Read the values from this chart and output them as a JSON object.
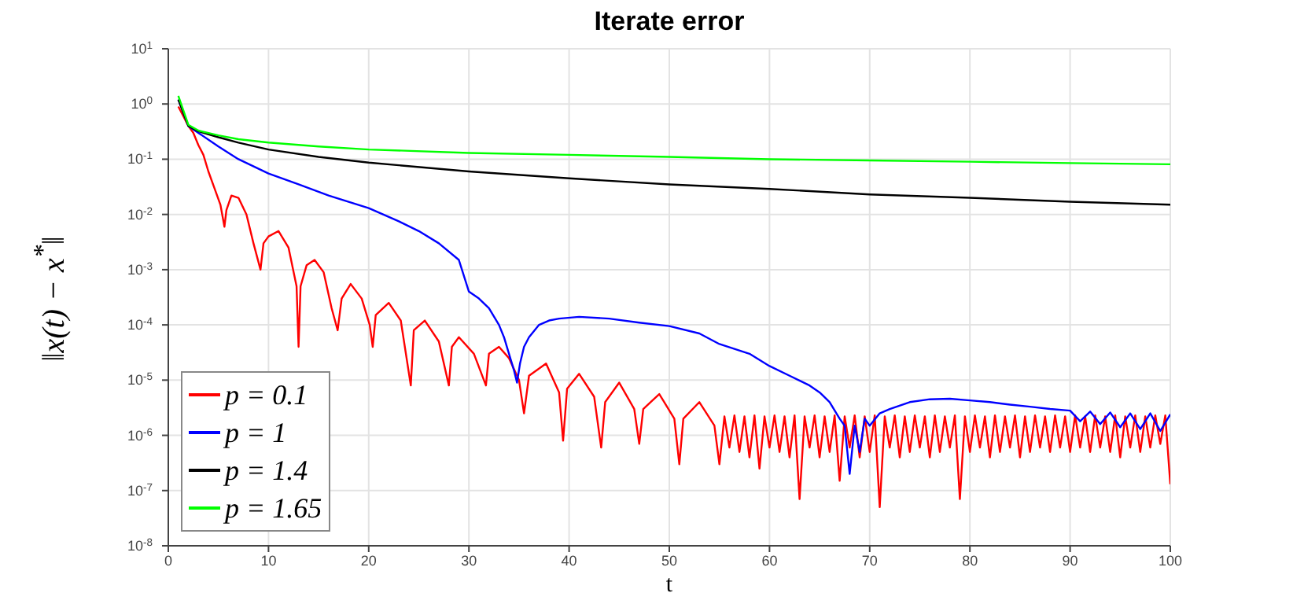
{
  "chart_data": {
    "type": "line",
    "title": "Iterate error",
    "xlabel": "t",
    "ylabel": "‖x(t) − x$^{*}$‖",
    "log": "y",
    "grid": true,
    "legend": "bottom left",
    "line_style": "solid",
    "marker": "none",
    "xlim": [
      0,
      100
    ],
    "xticks": [
      0,
      10,
      20,
      30,
      40,
      50,
      60,
      70,
      80,
      90,
      100
    ],
    "ylim": [
      1e-08,
      10
    ],
    "yticks": [
      {
        "value": 1e-08,
        "label": "10$^{-8}$"
      },
      {
        "value": 1e-07,
        "label": "10$^{-7}$"
      },
      {
        "value": 1e-06,
        "label": "10$^{-6}$"
      },
      {
        "value": 1e-05,
        "label": "10$^{-5}$"
      },
      {
        "value": 0.0001,
        "label": "10$^{-4}$"
      },
      {
        "value": 0.001,
        "label": "10$^{-3}$"
      },
      {
        "value": 0.01,
        "label": "10$^{-2}$"
      },
      {
        "value": 0.1,
        "label": "10$^{-1}$"
      },
      {
        "value": 1,
        "label": "10$^{0}$"
      },
      {
        "value": 10,
        "label": "10$^{1}$"
      }
    ],
    "series": [
      {
        "name": "p = 0.1",
        "color": "#ff0000",
        "x": [
          1,
          1.5,
          2,
          2.5,
          3,
          3.5,
          4,
          4.6,
          5.2,
          5.6,
          5.8,
          6.3,
          7,
          7.8,
          8.5,
          9.2,
          9.5,
          10,
          11,
          12,
          12.8,
          13,
          13.2,
          13.8,
          14.6,
          15.5,
          16.3,
          16.9,
          17.3,
          18.2,
          19.3,
          20.1,
          20.4,
          20.7,
          22,
          23.2,
          24.2,
          24.5,
          25.6,
          27,
          28,
          28.3,
          29,
          30.5,
          31.7,
          32,
          33,
          34,
          35,
          35.5,
          36,
          37.7,
          39,
          39.4,
          39.8,
          41,
          42.5,
          43.2,
          43.6,
          45,
          46.5,
          47,
          47.4,
          49,
          50.5,
          51,
          51.4,
          53,
          54.5,
          55,
          55.5,
          56,
          56.5,
          57,
          57.5,
          58,
          58.5,
          59,
          59.5,
          60,
          60.5,
          61,
          61.5,
          62,
          62.5,
          63,
          63.5,
          64,
          64.5,
          65,
          65.5,
          66,
          66.5,
          67,
          67.5,
          68,
          68.5,
          69,
          69.5,
          70,
          70.5,
          71,
          71.5,
          72,
          72.5,
          73,
          73.5,
          74,
          74.5,
          75,
          75.5,
          76,
          76.5,
          77,
          77.5,
          78,
          78.5,
          79,
          79.5,
          80,
          80.5,
          81,
          81.5,
          82,
          82.5,
          83,
          83.5,
          84,
          84.5,
          85,
          85.5,
          86,
          86.5,
          87,
          87.5,
          88,
          88.5,
          89,
          89.5,
          90,
          90.5,
          91,
          91.5,
          92,
          92.5,
          93,
          93.5,
          94,
          94.5,
          95,
          95.5,
          96,
          96.5,
          97,
          97.5,
          98,
          98.5,
          99,
          99.5,
          100
        ],
        "values": [
          0.9,
          0.6,
          0.4,
          0.3,
          0.18,
          0.12,
          0.06,
          0.03,
          0.015,
          0.006,
          0.012,
          0.022,
          0.02,
          0.01,
          0.003,
          0.001,
          0.003,
          0.004,
          0.005,
          0.0025,
          0.0005,
          4e-05,
          0.0005,
          0.0012,
          0.0015,
          0.0009,
          0.0002,
          8e-05,
          0.0003,
          0.00055,
          0.0003,
          0.0001,
          4e-05,
          0.00015,
          0.00025,
          0.00012,
          8e-06,
          8e-05,
          0.00012,
          5e-05,
          8e-06,
          4e-05,
          6e-05,
          3e-05,
          8e-06,
          3e-05,
          4e-05,
          2.5e-05,
          1e-05,
          2.5e-06,
          1.2e-05,
          2e-05,
          6e-06,
          8e-07,
          7e-06,
          1.3e-05,
          5e-06,
          6e-07,
          4e-06,
          9e-06,
          3e-06,
          7e-07,
          3e-06,
          5.6e-06,
          2e-06,
          3e-07,
          2e-06,
          4e-06,
          1.5e-06,
          3e-07,
          2.2e-06,
          6e-07,
          2.3e-06,
          5e-07,
          2.2e-06,
          4e-07,
          2.3e-06,
          2.5e-07,
          2.2e-06,
          6e-07,
          2.3e-06,
          5e-07,
          2.2e-06,
          4e-07,
          2.3e-06,
          7e-08,
          2.2e-06,
          6e-07,
          2.3e-06,
          4e-07,
          2.2e-06,
          5e-07,
          2.3e-06,
          1.5e-07,
          2.2e-06,
          6e-07,
          2.3e-06,
          4e-07,
          2.2e-06,
          5e-07,
          2.3e-06,
          5e-08,
          2.2e-06,
          6e-07,
          2.3e-06,
          4e-07,
          2.2e-06,
          5e-07,
          2.3e-06,
          6e-07,
          2.2e-06,
          4e-07,
          2.3e-06,
          5e-07,
          2.2e-06,
          6e-07,
          2.3e-06,
          7e-08,
          2.2e-06,
          5e-07,
          2.3e-06,
          6e-07,
          2.2e-06,
          4e-07,
          2.3e-06,
          5e-07,
          2.2e-06,
          6e-07,
          2.3e-06,
          4e-07,
          2.2e-06,
          5e-07,
          2.3e-06,
          6e-07,
          2.2e-06,
          5e-07,
          2.3e-06,
          6e-07,
          2.2e-06,
          5e-07,
          2.3e-06,
          6e-07,
          2.2e-06,
          5e-07,
          2.3e-06,
          6e-07,
          2.2e-06,
          5e-07,
          2.3e-06,
          4e-07,
          2.2e-06,
          6e-07,
          2.3e-06,
          5e-07,
          2.2e-06,
          6e-07,
          2.3e-06,
          7e-07,
          2.3e-06,
          1.3e-07
        ]
      },
      {
        "name": "p = 1",
        "color": "#0000ff",
        "x": [
          1,
          2,
          3,
          5,
          7,
          10,
          13,
          16,
          20,
          23,
          25,
          27,
          29,
          30,
          31,
          32,
          33,
          33.5,
          34,
          34.5,
          34.8,
          35.1,
          35.5,
          36,
          37,
          38,
          39,
          41,
          44,
          47,
          50,
          53,
          55,
          58,
          60,
          62,
          64,
          65,
          66,
          67,
          67.5,
          68,
          68.5,
          69,
          69.5,
          70,
          71,
          72,
          74,
          76,
          78,
          80,
          82,
          84,
          86,
          88,
          90,
          91,
          92,
          93,
          94,
          95,
          96,
          97,
          98,
          99,
          100
        ],
        "values": [
          1.2,
          0.4,
          0.3,
          0.17,
          0.1,
          0.055,
          0.035,
          0.022,
          0.013,
          0.0075,
          0.005,
          0.003,
          0.0015,
          0.0004,
          0.0003,
          0.0002,
          0.0001,
          6e-05,
          3e-05,
          1.5e-05,
          9e-06,
          2e-05,
          4e-05,
          6e-05,
          0.0001,
          0.00012,
          0.00013,
          0.00014,
          0.00013,
          0.00011,
          9.5e-05,
          7e-05,
          4.5e-05,
          3e-05,
          1.8e-05,
          1.2e-05,
          8e-06,
          6e-06,
          4e-06,
          2e-06,
          1.5e-06,
          2e-07,
          1.5e-06,
          5e-07,
          2e-06,
          1.5e-06,
          2.5e-06,
          3e-06,
          4e-06,
          4.5e-06,
          4.6e-06,
          4.3e-06,
          4e-06,
          3.6e-06,
          3.3e-06,
          3e-06,
          2.8e-06,
          1.8e-06,
          2.7e-06,
          1.6e-06,
          2.6e-06,
          1.4e-06,
          2.5e-06,
          1.3e-06,
          2.5e-06,
          1.2e-06,
          2.4e-06
        ]
      },
      {
        "name": "p = 1.4",
        "color": "#000000",
        "x": [
          1,
          2,
          3,
          5,
          7,
          10,
          15,
          20,
          30,
          40,
          50,
          60,
          70,
          80,
          90,
          100
        ],
        "values": [
          1.2,
          0.4,
          0.32,
          0.25,
          0.2,
          0.15,
          0.11,
          0.087,
          0.06,
          0.045,
          0.035,
          0.029,
          0.023,
          0.02,
          0.017,
          0.015
        ]
      },
      {
        "name": "p = 1.65",
        "color": "#00ff00",
        "x": [
          1,
          2,
          3,
          5,
          7,
          10,
          15,
          20,
          30,
          40,
          50,
          60,
          70,
          80,
          90,
          100
        ],
        "values": [
          1.4,
          0.42,
          0.33,
          0.27,
          0.23,
          0.2,
          0.17,
          0.15,
          0.13,
          0.12,
          0.11,
          0.1,
          0.095,
          0.09,
          0.085,
          0.081
        ]
      }
    ]
  }
}
